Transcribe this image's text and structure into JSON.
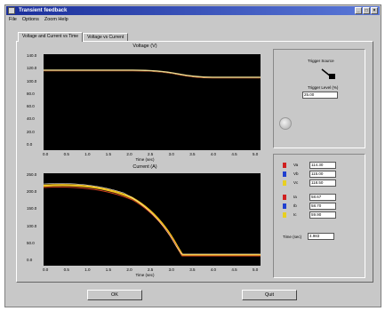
{
  "window": {
    "title": "Transient feedback",
    "close_glyph": "×",
    "min_glyph": "_",
    "max_glyph": "□"
  },
  "menu": [
    "File",
    "Options",
    "Zoom  Help"
  ],
  "tabs": [
    "Voltage and Current vs Time",
    "Voltage vs Current"
  ],
  "voltage_chart": {
    "title": "Voltage (V)",
    "xlabel": "Time (sec)",
    "yticks": [
      "140.0",
      "120.0",
      "100.0",
      "80.0",
      "60.0",
      "40.0",
      "20.0",
      "0.0"
    ],
    "xticks": [
      "0.0",
      "0.5",
      "1.0",
      "1.5",
      "2.0",
      "2.5",
      "3.0",
      "3.5",
      "4.0",
      "4.5",
      "5.0"
    ],
    "line_color": "#e8d890"
  },
  "current_chart": {
    "title": "Current (A)",
    "xlabel": "Time (sec)",
    "yticks": [
      "250.0",
      "200.0",
      "150.0",
      "100.0",
      "50.0",
      "0.0"
    ],
    "xticks": [
      "0.0",
      "0.5",
      "1.0",
      "1.5",
      "2.0",
      "2.5",
      "3.0",
      "3.5",
      "4.0",
      "4.5",
      "5.0"
    ],
    "line_colors": [
      "#f0c020",
      "#d04020",
      "#ffffff"
    ]
  },
  "trigger": {
    "source_label": "Trigger Source",
    "level_label": "Trigger Level (%)",
    "level_value": "25.00"
  },
  "readouts": {
    "voltage": [
      {
        "label": "Va",
        "value": "114.30",
        "color": "#d02020"
      },
      {
        "label": "Vb",
        "value": "115.00",
        "color": "#2040d0"
      },
      {
        "label": "Vc",
        "value": "118.50",
        "color": "#e8d020"
      }
    ],
    "current": [
      {
        "label": "Ia",
        "value": "58.67",
        "color": "#d02020"
      },
      {
        "label": "Ib",
        "value": "58.70",
        "color": "#2040d0"
      },
      {
        "label": "Ic",
        "value": "59.90",
        "color": "#e8d020"
      }
    ],
    "time_label": "Time (sec)",
    "time_value": "4.983"
  },
  "buttons": {
    "left": "OK",
    "right": "Quit"
  }
}
